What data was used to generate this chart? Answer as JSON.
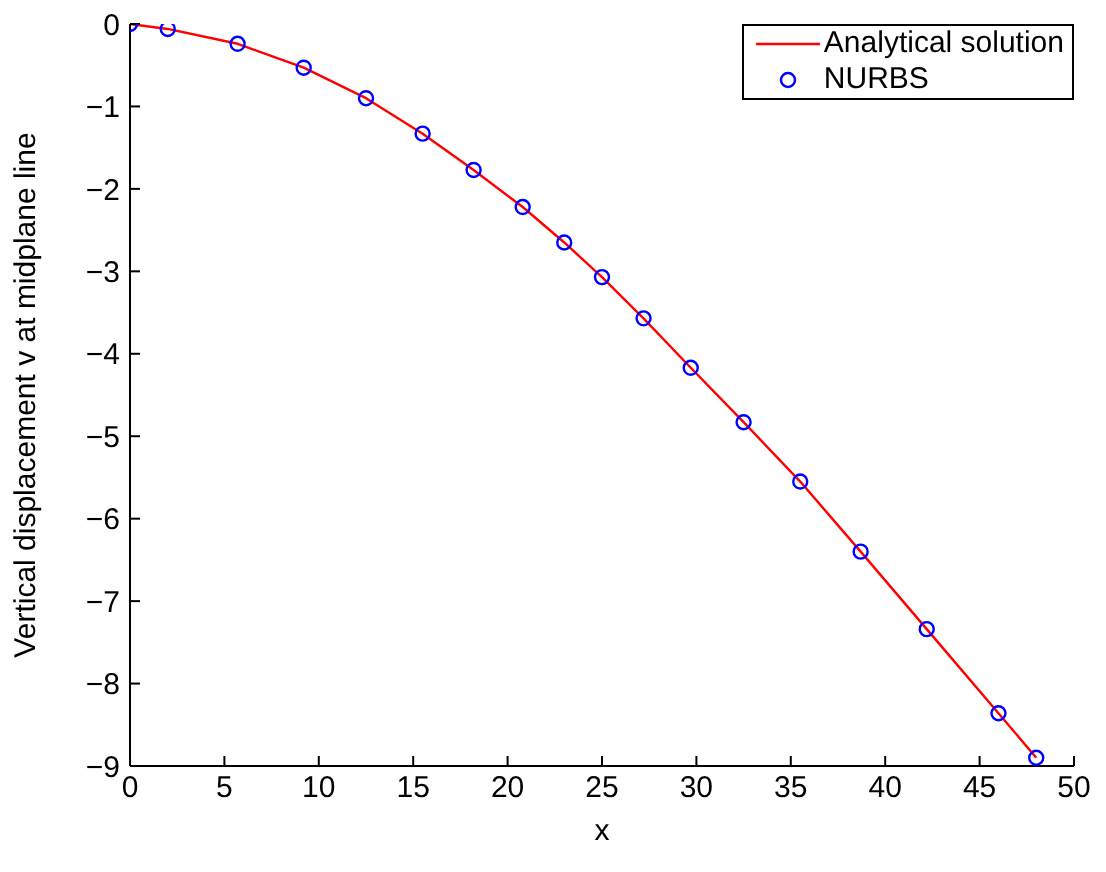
{
  "chart_data": {
    "type": "line",
    "xlabel": "x",
    "ylabel": "Vertical displacement v at midplane line",
    "xlim": [
      0,
      50
    ],
    "xticks": [
      0,
      5,
      10,
      15,
      20,
      25,
      30,
      35,
      40,
      45,
      50
    ],
    "ylim": [
      -9,
      0
    ],
    "yticks": [
      -9,
      -8,
      -7,
      -6,
      -5,
      -4,
      -3,
      -2,
      -1,
      0
    ],
    "grid": false,
    "legend": "top right",
    "series": [
      {
        "name": "Analytical solution",
        "color": "#ff0000",
        "marker": "none",
        "line_style": "solid",
        "x": [
          0,
          2,
          5.7,
          9.2,
          12.5,
          15.5,
          18.2,
          20.8,
          23,
          25,
          27.2,
          29.7,
          32.5,
          35.5,
          38.7,
          42.2,
          46,
          48
        ],
        "values": [
          0,
          -0.06,
          -0.24,
          -0.53,
          -0.9,
          -1.33,
          -1.77,
          -2.22,
          -2.65,
          -3.07,
          -3.57,
          -4.17,
          -4.83,
          -5.55,
          -6.4,
          -7.34,
          -8.36,
          -8.9
        ]
      },
      {
        "name": "NURBS",
        "type": "scatter",
        "color": "#0000ff",
        "marker": "circle",
        "x": [
          0,
          2,
          5.7,
          9.2,
          12.5,
          15.5,
          18.2,
          20.8,
          23,
          25,
          27.2,
          29.7,
          32.5,
          35.5,
          38.7,
          42.2,
          46,
          48
        ],
        "values": [
          0,
          -0.06,
          -0.24,
          -0.53,
          -0.9,
          -1.33,
          -1.77,
          -2.22,
          -2.65,
          -3.07,
          -3.57,
          -4.17,
          -4.83,
          -5.55,
          -6.4,
          -7.34,
          -8.36,
          -8.9
        ]
      }
    ]
  }
}
